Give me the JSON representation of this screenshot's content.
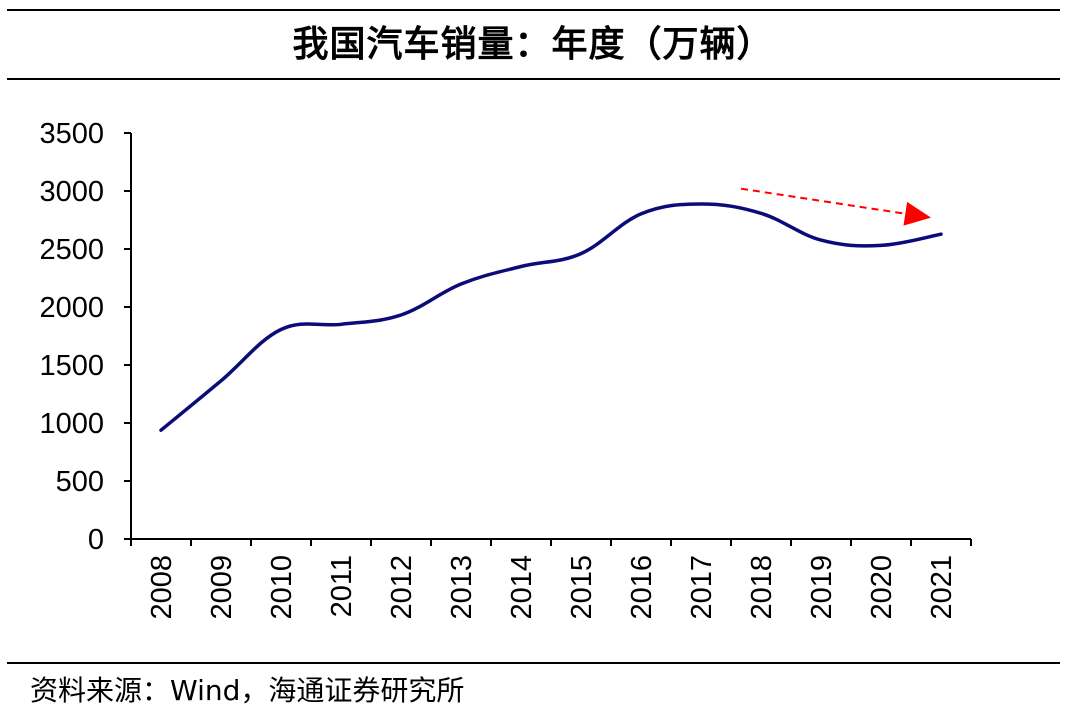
{
  "title": "我国汽车销量：年度（万辆）",
  "source": "资料来源：Wind，海通证券研究所",
  "colors": {
    "line": "#0b0b7a",
    "arrow": "#ff0000",
    "axis": "#000000"
  },
  "chart_data": {
    "type": "line",
    "title": "我国汽车销量：年度（万辆）",
    "xlabel": "",
    "ylabel": "",
    "ylim": [
      0,
      3500
    ],
    "yticks": [
      0,
      500,
      1000,
      1500,
      2000,
      2500,
      3000,
      3500
    ],
    "categories": [
      "2008",
      "2009",
      "2010",
      "2011",
      "2012",
      "2013",
      "2014",
      "2015",
      "2016",
      "2017",
      "2018",
      "2019",
      "2020",
      "2021"
    ],
    "series": [
      {
        "values": [
          938,
          1364,
          1806,
          1851,
          1931,
          2198,
          2349,
          2460,
          2803,
          2888,
          2808,
          2577,
          2531,
          2628
        ]
      }
    ],
    "grid": false,
    "legend": "none",
    "annotations": [
      {
        "type": "arrow",
        "style": "dashed",
        "color": "#ff0000",
        "from": {
          "x": "2018",
          "y": 3020
        },
        "to": {
          "x": "2021",
          "y": 2770
        }
      }
    ]
  }
}
